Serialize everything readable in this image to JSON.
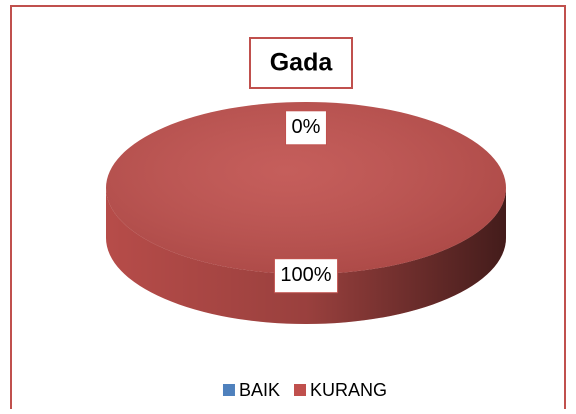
{
  "chart_data": {
    "type": "pie",
    "title": "Gada",
    "categories": [
      "BAIK",
      "KURANG"
    ],
    "values": [
      0,
      100
    ],
    "value_labels": [
      "0%",
      "100%"
    ],
    "colors": [
      "#4f81bd",
      "#c0504d"
    ],
    "legend": "bottom"
  }
}
